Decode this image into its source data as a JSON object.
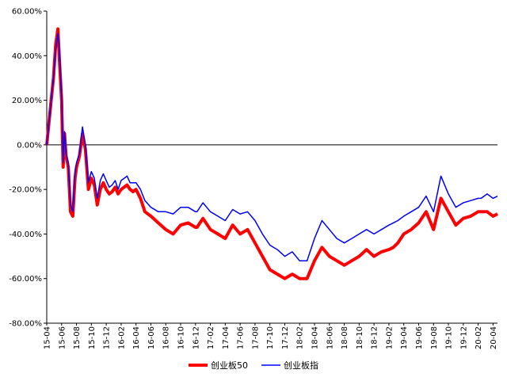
{
  "chart_data": {
    "type": "line",
    "title": "",
    "xlabel": "",
    "ylabel": "",
    "ylim": [
      -0.8,
      0.6
    ],
    "y_ticks": [
      0.6,
      0.4,
      0.2,
      0.0,
      -0.2,
      -0.4,
      -0.6,
      -0.8
    ],
    "y_tick_labels": [
      "60.00%",
      "40.00%",
      "20.00%",
      "0.00%",
      "-20.00%",
      "-40.00%",
      "-60.00%",
      "-80.00%"
    ],
    "x_tick_labels": [
      "15-04",
      "15-06",
      "15-08",
      "15-10",
      "15-12",
      "16-02",
      "16-04",
      "16-06",
      "16-08",
      "16-10",
      "16-12",
      "17-02",
      "17-04",
      "17-06",
      "17-08",
      "17-10",
      "17-12",
      "18-02",
      "18-04",
      "18-06",
      "18-08",
      "18-10",
      "18-12",
      "19-02",
      "19-04",
      "19-06",
      "19-08",
      "19-10",
      "19-12",
      "20-02",
      "20-04"
    ],
    "grid": false,
    "legend_position": "bottom",
    "colors": {
      "series_1": "#ff0000",
      "series_2": "#0000ff"
    },
    "series": [
      {
        "name": "创业板50",
        "x": [
          0,
          0.15,
          0.3,
          0.45,
          0.6,
          0.75,
          0.85,
          1.0,
          1.1,
          1.2,
          1.3,
          1.45,
          1.6,
          1.75,
          1.9,
          2.0,
          2.2,
          2.4,
          2.6,
          2.8,
          3.0,
          3.2,
          3.4,
          3.6,
          3.8,
          4.0,
          4.2,
          4.4,
          4.6,
          4.8,
          5.0,
          5.2,
          5.4,
          5.6,
          5.8,
          6.0,
          6.3,
          6.6,
          7.0,
          7.5,
          8.0,
          8.5,
          9.0,
          9.5,
          10.0,
          10.1,
          10.5,
          11.0,
          11.5,
          12.0,
          12.5,
          13.0,
          13.5,
          14.0,
          14.5,
          15.0,
          15.5,
          16.0,
          16.5,
          17.0,
          17.5,
          18.0,
          18.5,
          19.0,
          19.5,
          20.0,
          20.5,
          21.0,
          21.5,
          22.0,
          22.5,
          23.0,
          23.3,
          23.6,
          24.0,
          24.5,
          25.0,
          25.5,
          26.0,
          26.5,
          27.0,
          27.5,
          28.0,
          28.5,
          29.0,
          29.2,
          29.4,
          29.6,
          30.0,
          30.3
        ],
        "values": [
          0.0,
          0.1,
          0.2,
          0.3,
          0.45,
          0.52,
          0.38,
          0.2,
          -0.1,
          0.05,
          -0.05,
          -0.1,
          -0.3,
          -0.32,
          -0.15,
          -0.1,
          -0.05,
          0.05,
          -0.02,
          -0.2,
          -0.15,
          -0.18,
          -0.27,
          -0.2,
          -0.17,
          -0.2,
          -0.22,
          -0.21,
          -0.19,
          -0.22,
          -0.2,
          -0.19,
          -0.18,
          -0.2,
          -0.21,
          -0.2,
          -0.24,
          -0.3,
          -0.32,
          -0.35,
          -0.38,
          -0.4,
          -0.36,
          -0.35,
          -0.37,
          -0.37,
          -0.33,
          -0.38,
          -0.4,
          -0.42,
          -0.36,
          -0.4,
          -0.38,
          -0.44,
          -0.5,
          -0.56,
          -0.58,
          -0.6,
          -0.58,
          -0.6,
          -0.6,
          -0.52,
          -0.46,
          -0.5,
          -0.52,
          -0.54,
          -0.52,
          -0.5,
          -0.47,
          -0.5,
          -0.48,
          -0.47,
          -0.46,
          -0.44,
          -0.4,
          -0.38,
          -0.35,
          -0.3,
          -0.38,
          -0.24,
          -0.3,
          -0.36,
          -0.33,
          -0.32,
          -0.3,
          -0.3,
          -0.3,
          -0.3,
          -0.32,
          -0.31
        ]
      },
      {
        "name": "创业板指",
        "x": [
          0,
          0.15,
          0.3,
          0.45,
          0.6,
          0.75,
          0.85,
          1.0,
          1.1,
          1.2,
          1.3,
          1.45,
          1.6,
          1.75,
          1.9,
          2.0,
          2.2,
          2.4,
          2.6,
          2.8,
          3.0,
          3.2,
          3.4,
          3.6,
          3.8,
          4.0,
          4.2,
          4.4,
          4.6,
          4.8,
          5.0,
          5.2,
          5.4,
          5.6,
          5.8,
          6.0,
          6.3,
          6.6,
          7.0,
          7.5,
          8.0,
          8.5,
          9.0,
          9.5,
          10.0,
          10.1,
          10.5,
          11.0,
          11.5,
          12.0,
          12.5,
          13.0,
          13.5,
          14.0,
          14.5,
          15.0,
          15.5,
          16.0,
          16.5,
          17.0,
          17.5,
          18.0,
          18.5,
          19.0,
          19.5,
          20.0,
          20.5,
          21.0,
          21.5,
          22.0,
          22.5,
          23.0,
          23.3,
          23.6,
          24.0,
          24.5,
          25.0,
          25.5,
          26.0,
          26.5,
          27.0,
          27.5,
          28.0,
          28.5,
          29.0,
          29.2,
          29.4,
          29.6,
          30.0,
          30.3
        ],
        "values": [
          0.0,
          0.1,
          0.2,
          0.3,
          0.43,
          0.5,
          0.42,
          0.22,
          -0.08,
          0.06,
          -0.04,
          -0.08,
          -0.27,
          -0.3,
          -0.12,
          -0.08,
          -0.04,
          0.08,
          0.0,
          -0.17,
          -0.12,
          -0.15,
          -0.24,
          -0.16,
          -0.13,
          -0.16,
          -0.19,
          -0.18,
          -0.16,
          -0.2,
          -0.16,
          -0.15,
          -0.14,
          -0.17,
          -0.17,
          -0.17,
          -0.2,
          -0.25,
          -0.28,
          -0.3,
          -0.3,
          -0.31,
          -0.28,
          -0.28,
          -0.3,
          -0.3,
          -0.26,
          -0.3,
          -0.32,
          -0.34,
          -0.29,
          -0.31,
          -0.3,
          -0.34,
          -0.4,
          -0.45,
          -0.47,
          -0.5,
          -0.48,
          -0.52,
          -0.52,
          -0.42,
          -0.34,
          -0.38,
          -0.42,
          -0.44,
          -0.42,
          -0.4,
          -0.38,
          -0.4,
          -0.38,
          -0.36,
          -0.35,
          -0.34,
          -0.32,
          -0.3,
          -0.28,
          -0.23,
          -0.3,
          -0.14,
          -0.22,
          -0.28,
          -0.26,
          -0.25,
          -0.24,
          -0.24,
          -0.23,
          -0.22,
          -0.24,
          -0.23
        ]
      }
    ]
  }
}
